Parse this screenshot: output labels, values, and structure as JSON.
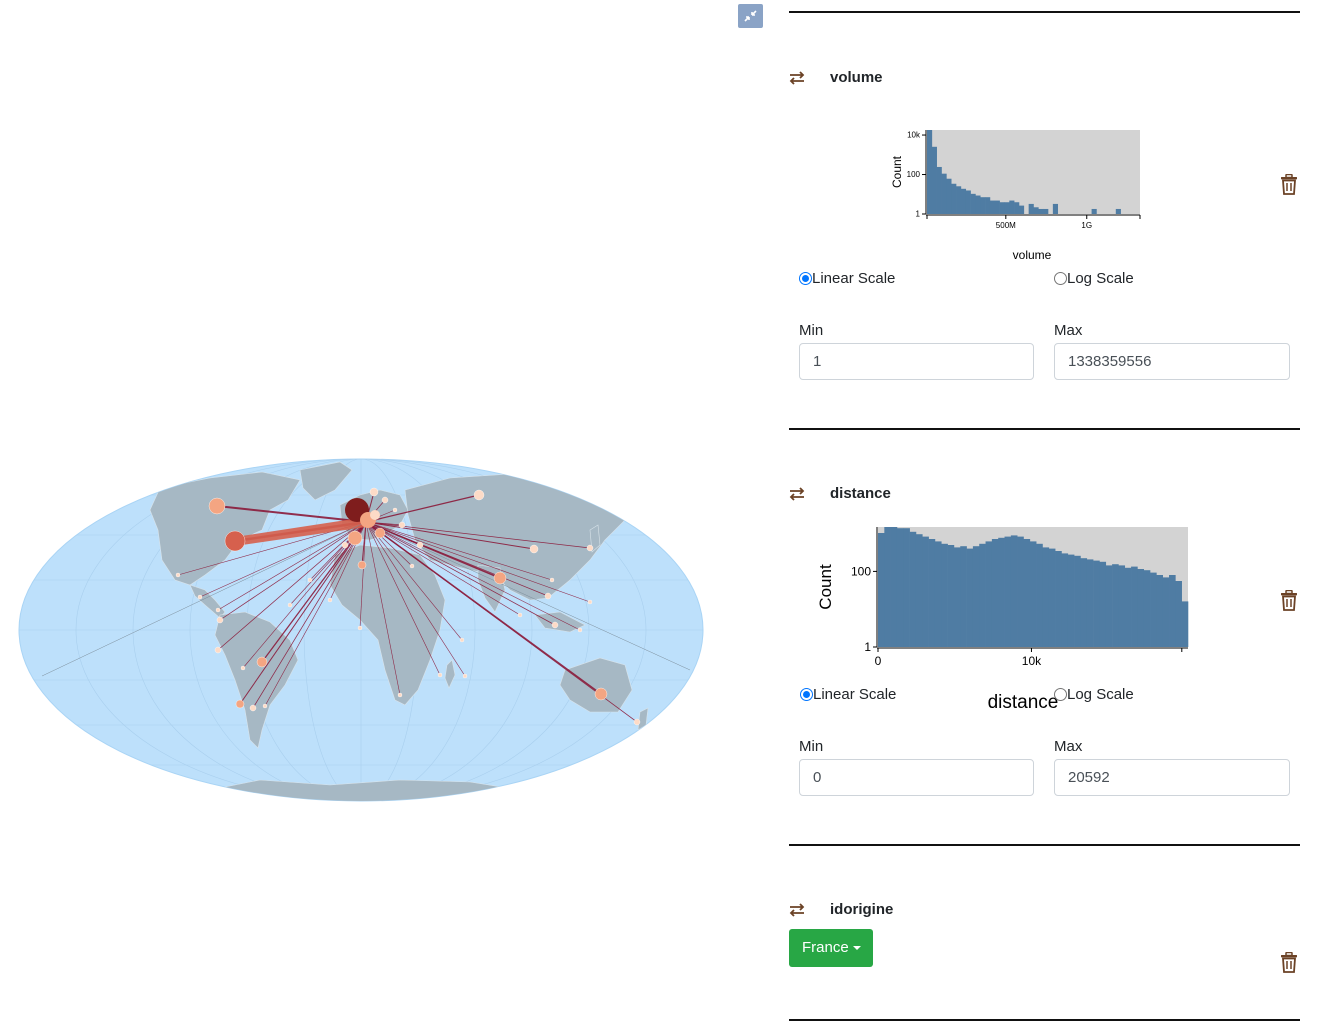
{
  "app": {
    "expand_icon": "compress-arrows-icon"
  },
  "colors": {
    "ocean": "#bde0fb",
    "land": "#a6b8c4",
    "flow": "#8b1a3a",
    "hist_bar": "#4f7ca3",
    "hist_bg": "#d3d3d3",
    "accent_green": "#28a745",
    "icon_brown": "#6b4226"
  },
  "filters": [
    {
      "id": "volume",
      "title": "volume",
      "swap_icon": "swap-arrows-icon",
      "delete_icon": "trash-icon",
      "histogram": {
        "ylabel": "Count",
        "xlabel": "volume",
        "yticks": [
          "10k",
          "100",
          "1"
        ],
        "xticks": [
          "500M",
          "1G"
        ]
      },
      "scale_options": [
        {
          "label": "Linear Scale",
          "selected": true
        },
        {
          "label": "Log Scale",
          "selected": false
        }
      ],
      "min_label": "Min",
      "max_label": "Max",
      "min_value": "1",
      "max_value": "1338359556"
    },
    {
      "id": "distance",
      "title": "distance",
      "swap_icon": "swap-arrows-icon",
      "delete_icon": "trash-icon",
      "histogram": {
        "ylabel": "Count",
        "xlabel": "distance",
        "yticks": [
          "100",
          "1"
        ],
        "xticks": [
          "0",
          "10k"
        ]
      },
      "scale_options": [
        {
          "label": "Linear Scale",
          "selected": true
        },
        {
          "label": "Log Scale",
          "selected": false
        }
      ],
      "min_label": "Min",
      "max_label": "Max",
      "min_value": "0",
      "max_value": "20592"
    },
    {
      "id": "idorigine",
      "title": "idorigine",
      "swap_icon": "swap-arrows-icon",
      "delete_icon": "trash-icon",
      "dropdown_value": "France"
    }
  ]
}
